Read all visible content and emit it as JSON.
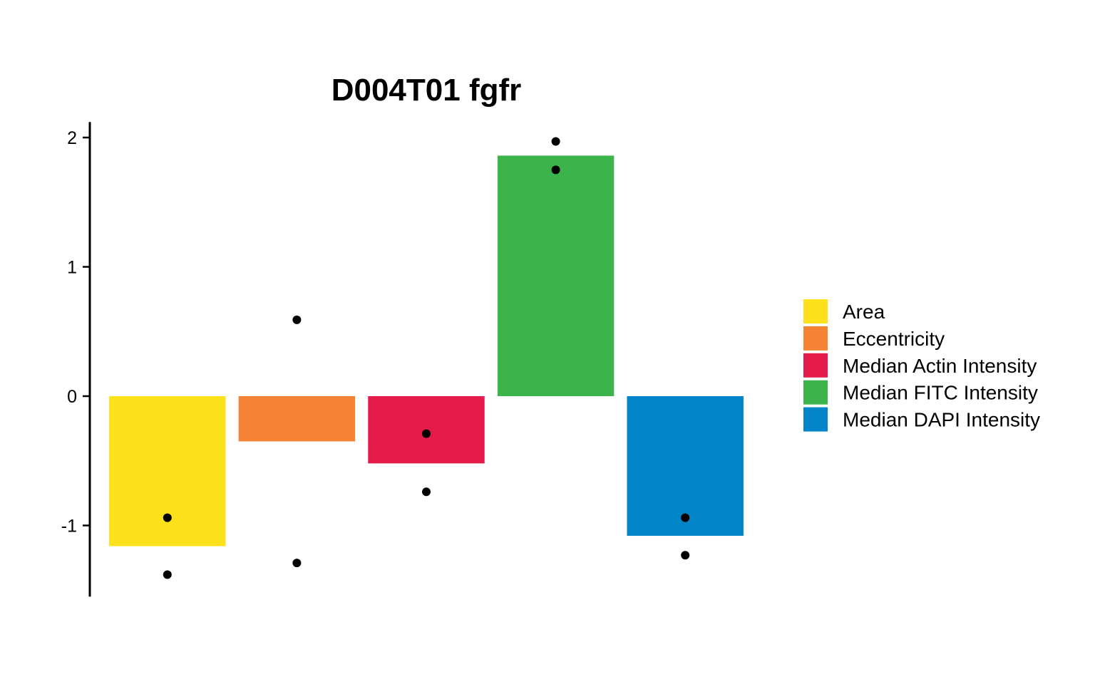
{
  "chart_data": {
    "type": "bar",
    "title": "D004T01 fgfr",
    "xlabel": "",
    "ylabel": "",
    "ylim": [
      -1.55,
      2.12
    ],
    "yticks": [
      {
        "value": 2,
        "label": "2"
      },
      {
        "value": 1,
        "label": "1"
      },
      {
        "value": 0,
        "label": "0"
      },
      {
        "value": -1,
        "label": "-1"
      }
    ],
    "categories": [
      "Area",
      "Eccentricity",
      "Median Actin Intensity",
      "Median FITC Intensity",
      "Median DAPI Intensity"
    ],
    "values": [
      -1.16,
      -0.35,
      -0.52,
      1.86,
      -1.08
    ],
    "points": [
      [
        -0.94,
        -1.38
      ],
      [
        0.59,
        -1.29
      ],
      [
        -0.29,
        -0.74
      ],
      [
        1.97,
        1.75
      ],
      [
        -0.94,
        -1.23
      ]
    ],
    "colors": [
      "#FDE11B",
      "#F48333",
      "#E51B4A",
      "#3CB34B",
      "#0284C8"
    ],
    "point_color": "#000000",
    "legend": {
      "placement": "right",
      "entries": [
        "Area",
        "Eccentricity",
        "Median Actin Intensity",
        "Median FITC Intensity",
        "Median DAPI Intensity"
      ]
    },
    "grid": false,
    "x_axis_visible": false
  }
}
